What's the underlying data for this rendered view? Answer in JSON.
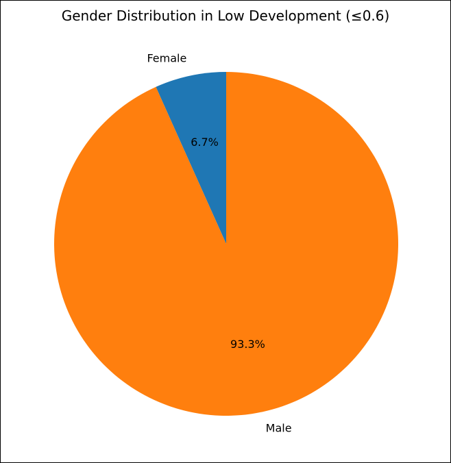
{
  "chart_data": {
    "type": "pie",
    "title": "Gender Distribution in Low Development (≤0.6)",
    "slices": [
      {
        "label": "Female",
        "value": 6.7,
        "pct_label": "6.7%",
        "color": "#1f77b4"
      },
      {
        "label": "Male",
        "value": 93.3,
        "pct_label": "93.3%",
        "color": "#ff7f0e"
      }
    ],
    "start_angle": "top (90°)",
    "direction": "counterclockwise"
  }
}
